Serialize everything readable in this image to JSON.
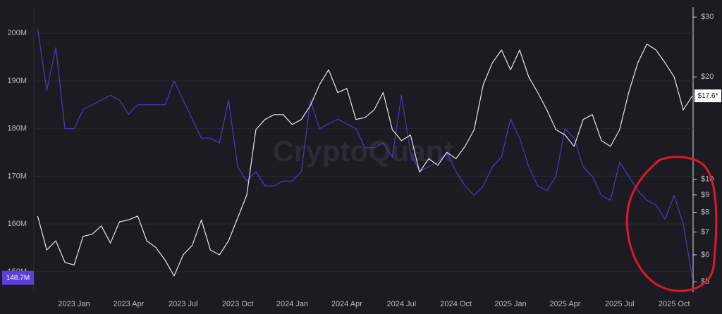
{
  "chart_data": {
    "type": "line",
    "watermark": "CryptoQuant",
    "categories": [
      null,
      null,
      null,
      null,
      "2023 Jan",
      null,
      null,
      null,
      null,
      null,
      "2023 Apr",
      null,
      null,
      null,
      null,
      null,
      "2023 Jul",
      null,
      null,
      null,
      null,
      null,
      "2023 Oct",
      null,
      null,
      null,
      null,
      null,
      "2024 Jan",
      null,
      null,
      null,
      null,
      null,
      "2024 Apr",
      null,
      null,
      null,
      null,
      null,
      "2024 Jul",
      null,
      null,
      null,
      null,
      null,
      "2024 Oct",
      null,
      null,
      null,
      null,
      null,
      "2025 Jan",
      null,
      null,
      null,
      null,
      null,
      "2025 Apr",
      null,
      null,
      null,
      null,
      null,
      "2025 Jul",
      null,
      null,
      null,
      null,
      null,
      "2025 Oct",
      null,
      null
    ],
    "ylim": [
      145.7,
      205.5
    ],
    "yticks": [
      {
        "value": 150,
        "label": "150M"
      },
      {
        "value": 160,
        "label": "160M"
      },
      {
        "value": 170,
        "label": "170M"
      },
      {
        "value": 180,
        "label": "180M"
      },
      {
        "value": 190,
        "label": "190M"
      },
      {
        "value": 200,
        "label": "200M"
      }
    ],
    "y2lim": [
      4.66,
      32.1
    ],
    "y2_log": true,
    "y2ticks": [
      {
        "value": 5,
        "label": "$5"
      },
      {
        "value": 6,
        "label": "$6"
      },
      {
        "value": 7,
        "label": "$7"
      },
      {
        "value": 8,
        "label": "$8"
      },
      {
        "value": 9,
        "label": "$9"
      },
      {
        "value": 10,
        "label": "$10"
      },
      {
        "value": 20,
        "label": "$20"
      },
      {
        "value": 30,
        "label": "$30"
      }
    ],
    "grid": true,
    "series": [
      {
        "color": "#4a3bc0",
        "last_label": "148.7M",
        "values": [
          201,
          188,
          197,
          180,
          180,
          184,
          185,
          186,
          187,
          186,
          183,
          185,
          185,
          185,
          185,
          190,
          186,
          182,
          178,
          178,
          177,
          186,
          172,
          169,
          171,
          168,
          168,
          169,
          169,
          171,
          186,
          180,
          181,
          182,
          181,
          180,
          176,
          176,
          177,
          174,
          187,
          175,
          171,
          172,
          173,
          175,
          171,
          168,
          166,
          168,
          172,
          174,
          182,
          178,
          172,
          168,
          167,
          170,
          180,
          178,
          172,
          170,
          166,
          165,
          173,
          170,
          167,
          165,
          164,
          161,
          166,
          160,
          148.7
        ]
      },
      {
        "color": "#e6e6ea",
        "axis": "y2",
        "last_label": "$17.6*",
        "values": [
          7.8,
          6.2,
          6.6,
          5.7,
          5.6,
          6.8,
          6.9,
          7.3,
          6.5,
          7.5,
          7.6,
          7.8,
          6.6,
          6.3,
          5.8,
          5.2,
          6.0,
          6.4,
          7.6,
          6.2,
          6.0,
          6.6,
          7.7,
          9.0,
          14,
          15,
          15.5,
          15.5,
          14.5,
          15,
          16.5,
          19,
          21,
          18,
          18.5,
          15,
          15.2,
          16,
          18,
          14,
          13,
          13.5,
          10.5,
          11.5,
          11,
          12,
          11.5,
          12.5,
          14,
          19,
          22,
          24,
          21,
          24,
          20,
          18,
          16,
          14,
          13.5,
          12.5,
          15,
          15.5,
          13,
          12.5,
          14,
          18,
          22,
          25,
          24,
          22,
          20,
          16,
          17.6
        ]
      }
    ]
  }
}
